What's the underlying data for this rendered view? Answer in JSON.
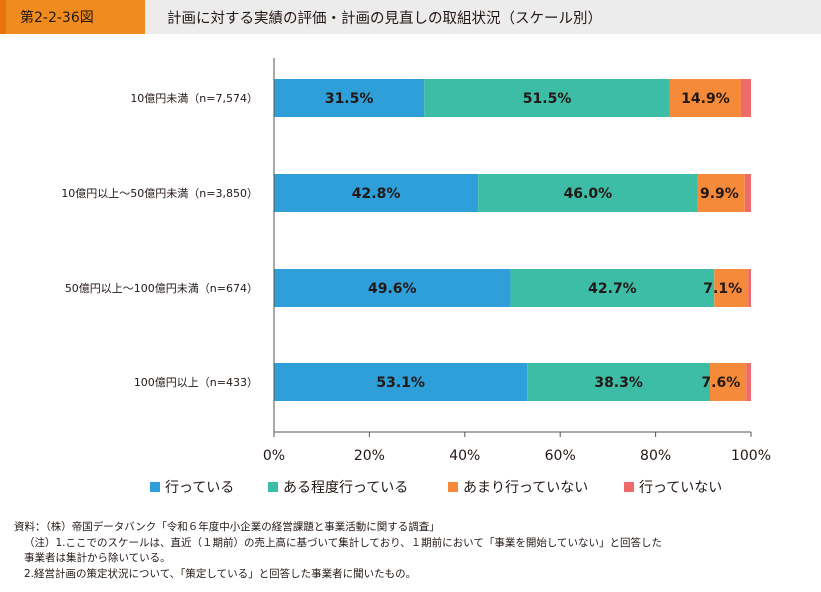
{
  "header": {
    "figure_number": "第2-2-36図",
    "title": "計画に対する実績の評価・計画の見直しの取組状況（スケール別）"
  },
  "colors": {
    "header_accent": "#f08c1e",
    "header_bg": "#ececec",
    "series": [
      "#2e9fd8",
      "#3dbca6",
      "#f58a3a",
      "#ee6b6b"
    ]
  },
  "chart_data": {
    "type": "bar",
    "orientation": "horizontal",
    "stacked": true,
    "percent": true,
    "categories": [
      "10億円未満（n=7,574）",
      "10億円以上～50億円未満（n=3,850）",
      "50億円以上～100億円未満（n=674）",
      "100億円以上（n=433）"
    ],
    "series": [
      {
        "name": "行っている",
        "values": [
          31.5,
          42.8,
          49.6,
          53.1
        ],
        "labels": [
          "31.5%",
          "42.8%",
          "49.6%",
          "53.1%"
        ]
      },
      {
        "name": "ある程度行っている",
        "values": [
          51.5,
          46.0,
          42.7,
          38.3
        ],
        "labels": [
          "51.5%",
          "46.0%",
          "42.7%",
          "38.3%"
        ]
      },
      {
        "name": "あまり行っていない",
        "values": [
          14.9,
          9.9,
          7.1,
          7.6
        ],
        "labels": [
          "14.9%",
          "9.9%",
          "7.1%",
          "7.6%"
        ]
      },
      {
        "name": "行っていない",
        "values": [
          2.1,
          1.3,
          0.6,
          1.0
        ],
        "labels": [
          "",
          "",
          "",
          ""
        ]
      }
    ],
    "xlim": [
      0,
      100
    ],
    "xticks": [
      "0%",
      "20%",
      "40%",
      "60%",
      "80%",
      "100%"
    ],
    "grid": false,
    "legend_position": "bottom"
  },
  "notes": [
    "資料：（株）帝国データバンク「令和６年度中小企業の経営課題と事業活動に関する調査」",
    "（注）1.ここでのスケールは、直近（１期前）の売上高に基づいて集計しており、１期前において「事業を開始していない」と回答した",
    "事業者は集計から除いている。",
    "2.経営計画の策定状況について、「策定している」と回答した事業者に聞いたもの。"
  ]
}
